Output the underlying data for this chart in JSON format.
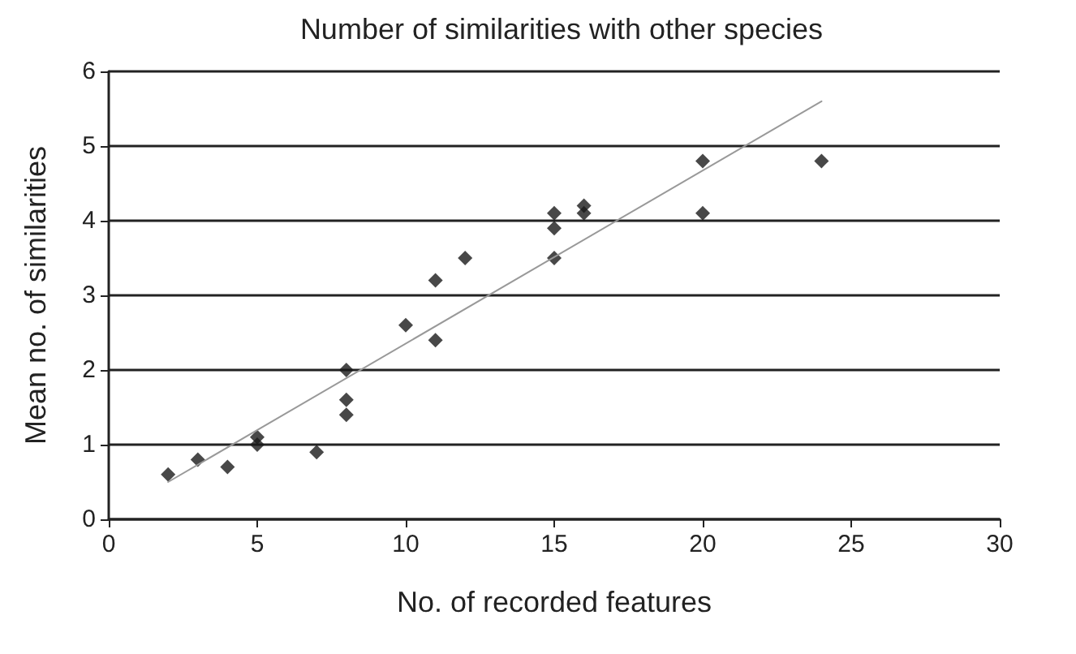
{
  "chart_data": {
    "type": "scatter",
    "title": "Number of similarities with other species",
    "xlabel": "No. of recorded features",
    "ylabel": "Mean no. of similarities",
    "series": [
      {
        "color": "#1a1a1a",
        "marker": "diamond",
        "x": [
          2,
          3,
          4,
          5,
          5,
          7,
          8,
          8,
          8,
          10,
          11,
          11,
          12,
          15,
          15,
          15,
          16,
          16,
          20,
          20,
          24
        ],
        "values": [
          0.6,
          0.8,
          0.7,
          1.1,
          1.0,
          0.9,
          2.0,
          1.6,
          1.4,
          2.6,
          3.2,
          2.4,
          3.5,
          4.1,
          3.9,
          3.5,
          4.2,
          4.1,
          4.8,
          4.1,
          4.8
        ]
      },
      {
        "type": "line",
        "color": "#999999",
        "marker": "none",
        "x": [
          2,
          24
        ],
        "values": [
          0.5,
          5.6
        ]
      }
    ],
    "xlim": [
      0,
      30
    ],
    "xticks": [
      0,
      5,
      10,
      15,
      20,
      25,
      30
    ],
    "ylim": [
      0,
      6
    ],
    "yticks": [
      0,
      1,
      2,
      3,
      4,
      5,
      6
    ],
    "grid": "y"
  }
}
